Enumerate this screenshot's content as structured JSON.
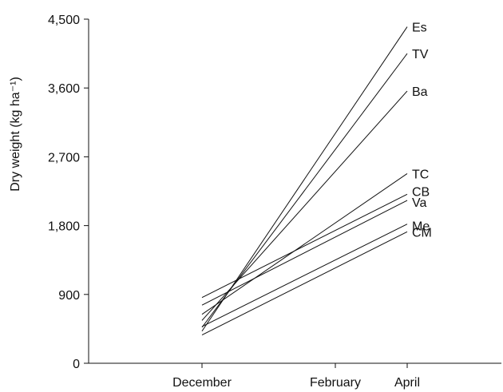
{
  "chart_data": {
    "type": "line",
    "title": "",
    "xlabel": "",
    "ylabel": "Dry weight (kg ha⁻¹)",
    "categories": [
      "December",
      "February",
      "April"
    ],
    "ylim": [
      0,
      4500
    ],
    "yticks": [
      0,
      900,
      1800,
      2700,
      3600,
      4500
    ],
    "ytick_labels": [
      "0",
      "900",
      "1,800",
      "2,700",
      "3,600",
      "4,500"
    ],
    "grid": false,
    "legend": "none",
    "line_color": "#111111",
    "series": [
      {
        "name": "Es",
        "x": [
          "December",
          "April"
        ],
        "values": [
          420,
          4400
        ]
      },
      {
        "name": "TV",
        "x": [
          "December",
          "April"
        ],
        "values": [
          470,
          4050
        ]
      },
      {
        "name": "Ba",
        "x": [
          "December",
          "April"
        ],
        "values": [
          560,
          3560
        ]
      },
      {
        "name": "TC",
        "x": [
          "December",
          "April"
        ],
        "values": [
          640,
          2480
        ]
      },
      {
        "name": "CB",
        "x": [
          "December",
          "April"
        ],
        "values": [
          860,
          2210
        ]
      },
      {
        "name": "Va",
        "x": [
          "December",
          "April"
        ],
        "values": [
          760,
          2130
        ]
      },
      {
        "name": "Me",
        "x": [
          "December",
          "April"
        ],
        "values": [
          480,
          1820
        ]
      },
      {
        "name": "CM",
        "x": [
          "December",
          "April"
        ],
        "values": [
          370,
          1720
        ]
      }
    ]
  }
}
